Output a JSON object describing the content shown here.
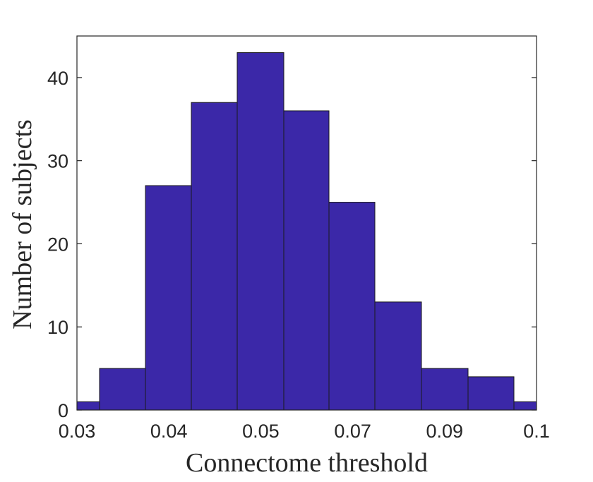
{
  "chart_data": {
    "type": "bar",
    "xlabel": "Connectome threshold",
    "ylabel": "Number of subjects",
    "x_tick_labels": [
      "0.03",
      "0.04",
      "0.05",
      "0.07",
      "0.09",
      "0.1"
    ],
    "y_ticks": [
      0,
      10,
      20,
      30,
      40
    ],
    "ylim": [
      0,
      45
    ],
    "bins": [
      {
        "index": 1,
        "count": 1
      },
      {
        "index": 2,
        "count": 5
      },
      {
        "index": 3,
        "count": 27
      },
      {
        "index": 4,
        "count": 37
      },
      {
        "index": 5,
        "count": 43
      },
      {
        "index": 6,
        "count": 36
      },
      {
        "index": 7,
        "count": 25
      },
      {
        "index": 8,
        "count": 13
      },
      {
        "index": 9,
        "count": 5
      },
      {
        "index": 10,
        "count": 4
      },
      {
        "index": 11,
        "count": 1
      }
    ],
    "bar_color": "#3b28a8",
    "bar_edge_color": "#1a1a1a",
    "grid": false,
    "legend": "none"
  }
}
